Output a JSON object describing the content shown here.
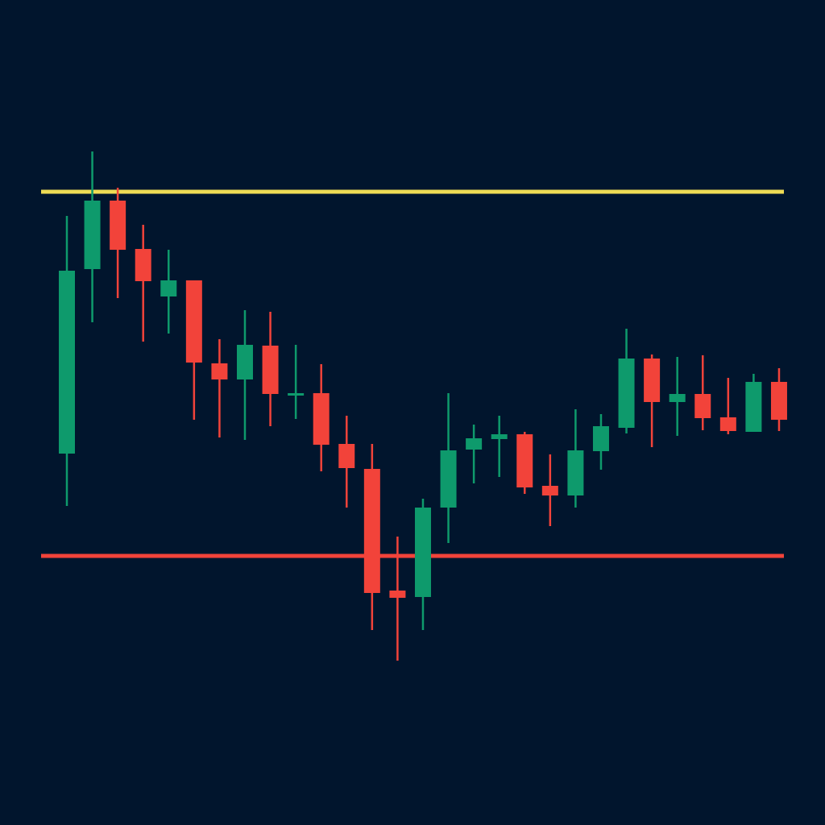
{
  "chart_data": {
    "type": "candlestick",
    "categories": [
      null,
      null,
      null,
      null,
      null,
      null,
      null,
      null,
      null,
      null,
      null,
      null,
      null,
      null,
      null,
      null,
      null,
      null,
      null,
      null,
      null,
      null,
      null,
      null,
      null,
      null,
      null,
      null,
      null
    ],
    "open": [
      461,
      690,
      775,
      715,
      656,
      676,
      573,
      553,
      595,
      533,
      536,
      473,
      442,
      291,
      283,
      394,
      466,
      479,
      485,
      421,
      409,
      464,
      493,
      579,
      525,
      535,
      506,
      488,
      550
    ],
    "high": [
      756,
      836,
      791,
      745,
      714,
      676,
      603,
      639,
      637,
      596,
      572,
      508,
      473,
      358,
      405,
      536,
      497,
      508,
      488,
      460,
      516,
      510,
      616,
      584,
      581,
      583,
      555,
      560,
      567
    ],
    "low": [
      396,
      624,
      654,
      600,
      610,
      503,
      481,
      478,
      495,
      504,
      439,
      394,
      242,
      204,
      242,
      350,
      424,
      432,
      411,
      371,
      394,
      441,
      486,
      469,
      483,
      490,
      485,
      488,
      489
    ],
    "close": [
      688,
      775,
      714,
      675,
      676,
      574,
      553,
      596,
      535,
      536,
      472,
      443,
      288,
      282,
      394,
      465,
      480,
      485,
      419,
      409,
      465,
      495,
      579,
      525,
      535,
      505,
      489,
      550,
      503
    ],
    "up_color": "#0e9a6c",
    "down_color": "#f2433a",
    "ylim": [
      0,
      1024
    ],
    "levels": [
      {
        "value": 786,
        "color": "#eedb55"
      },
      {
        "value": 334,
        "color": "#f2433a"
      }
    ],
    "background": "#01152d"
  }
}
